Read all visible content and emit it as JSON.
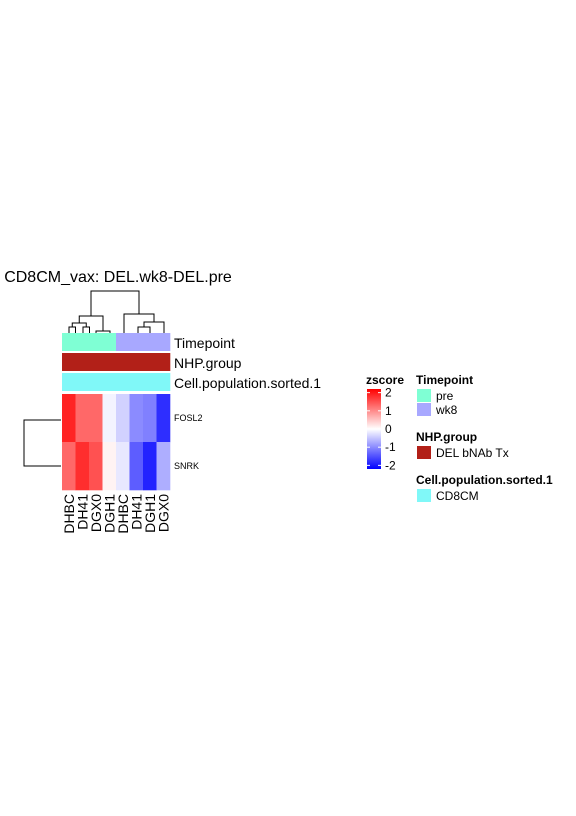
{
  "chart_data": {
    "type": "heatmap",
    "title": "CD8CM_vax: DEL.wk8-DEL.pre",
    "columns": [
      "DHBC",
      "DH41",
      "DGX0",
      "DGH1",
      "DHBC",
      "DH41",
      "DGH1",
      "DGX0"
    ],
    "rows": [
      "FOSL2",
      "SNRK"
    ],
    "values": [
      [
        1.9,
        1.3,
        1.3,
        -0.1,
        -0.4,
        -1.0,
        -1.1,
        -1.8
      ],
      [
        1.3,
        1.8,
        1.5,
        0.1,
        -0.2,
        -1.4,
        -1.9,
        -0.7
      ]
    ],
    "annotations": [
      {
        "name": "Timepoint",
        "values": [
          "pre",
          "pre",
          "pre",
          "pre",
          "wk8",
          "wk8",
          "wk8",
          "wk8"
        ]
      },
      {
        "name": "NHP.group",
        "values": [
          "DEL bNAb Tx",
          "DEL bNAb Tx",
          "DEL bNAb Tx",
          "DEL bNAb Tx",
          "DEL bNAb Tx",
          "DEL bNAb Tx",
          "DEL bNAb Tx",
          "DEL bNAb Tx"
        ]
      },
      {
        "name": "Cell.population.sorted.1",
        "values": [
          "CD8CM",
          "CD8CM",
          "CD8CM",
          "CD8CM",
          "CD8CM",
          "CD8CM",
          "CD8CM",
          "CD8CM"
        ]
      }
    ],
    "color_scale": {
      "title": "zscore",
      "min": -2.2,
      "max": 2.2,
      "ticks": [
        2,
        1,
        0,
        -1,
        -2
      ],
      "low": "#0000ff",
      "mid": "#ffffff",
      "high": "#ff0000"
    },
    "legends": [
      {
        "title": "Timepoint",
        "entries": [
          {
            "label": "pre",
            "color": "#7fffd4"
          },
          {
            "label": "wk8",
            "color": "#a8a8ff"
          }
        ]
      },
      {
        "title": "NHP.group",
        "entries": [
          {
            "label": "DEL bNAb Tx",
            "color": "#b22018"
          }
        ]
      },
      {
        "title": "Cell.population.sorted.1",
        "entries": [
          {
            "label": "CD8CM",
            "color": "#80f8f8"
          }
        ]
      }
    ]
  }
}
